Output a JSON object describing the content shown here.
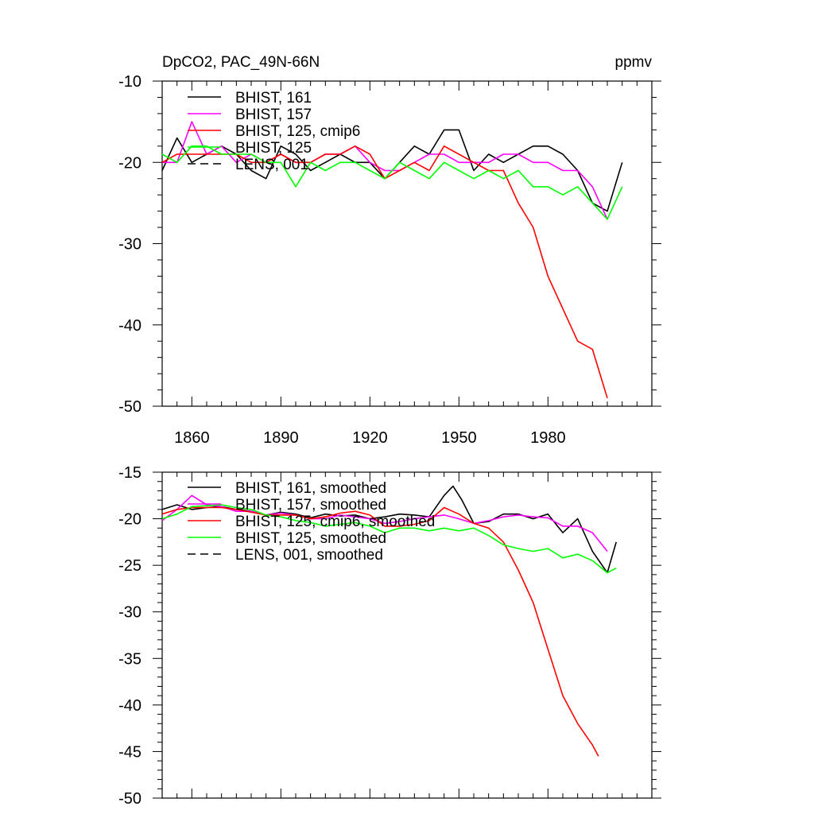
{
  "chart_data": [
    {
      "type": "line",
      "title": "DpCO2, PAC_49N-66N",
      "units": "ppmv",
      "xlim": [
        1850,
        2015
      ],
      "ylim": [
        -50,
        -10
      ],
      "xticks": [
        1860,
        1890,
        1920,
        1950,
        1980
      ],
      "yticks": [
        -50,
        -40,
        -30,
        -20,
        -10
      ],
      "grid": false,
      "legend_position": "top-left",
      "series": [
        {
          "name": "BHIST, 161",
          "color": "#000000",
          "dash": "solid",
          "x": [
            1850,
            1855,
            1860,
            1865,
            1870,
            1875,
            1880,
            1885,
            1890,
            1895,
            1900,
            1905,
            1910,
            1915,
            1920,
            1925,
            1930,
            1935,
            1940,
            1945,
            1950,
            1955,
            1960,
            1965,
            1970,
            1975,
            1980,
            1985,
            1990,
            1995,
            2000,
            2005
          ],
          "y": [
            -21,
            -17,
            -20,
            -19,
            -18,
            -19,
            -21,
            -22,
            -18,
            -19,
            -21,
            -20,
            -19,
            -20,
            -20,
            -22,
            -20,
            -18,
            -19,
            -16,
            -16,
            -21,
            -19,
            -20,
            -19,
            -18,
            -18,
            -19,
            -21,
            -25,
            -26,
            -20
          ]
        },
        {
          "name": "BHIST, 157",
          "color": "#ff00ff",
          "dash": "solid",
          "x": [
            1850,
            1855,
            1860,
            1865,
            1870,
            1875,
            1880,
            1885,
            1890,
            1895,
            1900,
            1905,
            1910,
            1915,
            1920,
            1925,
            1930,
            1935,
            1940,
            1945,
            1950,
            1955,
            1960,
            1965,
            1970,
            1975,
            1980,
            1985,
            1990,
            1995,
            2000
          ],
          "y": [
            -20,
            -20,
            -15,
            -19,
            -18,
            -20,
            -19,
            -20,
            -19,
            -20,
            -20,
            -19,
            -19,
            -18,
            -20,
            -21,
            -21,
            -20,
            -19,
            -19,
            -20,
            -20,
            -20,
            -19,
            -19,
            -20,
            -20,
            -21,
            -21,
            -23,
            -27
          ]
        },
        {
          "name": "BHIST, 125, cmip6",
          "color": "#ff0000",
          "dash": "solid",
          "x": [
            1850,
            1855,
            1860,
            1865,
            1870,
            1875,
            1880,
            1885,
            1890,
            1895,
            1900,
            1905,
            1910,
            1915,
            1920,
            1925,
            1930,
            1935,
            1940,
            1945,
            1950,
            1955,
            1960,
            1965,
            1970,
            1975,
            1980,
            1985,
            1990,
            1995,
            2000
          ],
          "y": [
            -20,
            -19,
            -19,
            -19,
            -19,
            -19,
            -20,
            -20,
            -19,
            -20,
            -20,
            -19,
            -19,
            -18,
            -19,
            -22,
            -21,
            -20,
            -21,
            -18,
            -19,
            -20,
            -21,
            -21,
            -25,
            -28,
            -34,
            -38,
            -42,
            -43,
            -49
          ]
        },
        {
          "name": "BHIST, 125",
          "color": "#00ff00",
          "dash": "solid",
          "x": [
            1850,
            1855,
            1860,
            1865,
            1870,
            1875,
            1880,
            1885,
            1890,
            1895,
            1900,
            1905,
            1910,
            1915,
            1920,
            1925,
            1930,
            1935,
            1940,
            1945,
            1950,
            1955,
            1960,
            1965,
            1970,
            1975,
            1980,
            1985,
            1990,
            1995,
            2000,
            2005
          ],
          "y": [
            -19,
            -20,
            -18,
            -18,
            -19,
            -19,
            -19,
            -20,
            -20,
            -23,
            -20,
            -21,
            -20,
            -20,
            -21,
            -22,
            -20,
            -21,
            -22,
            -20,
            -21,
            -22,
            -21,
            -22,
            -21,
            -23,
            -23,
            -24,
            -23,
            -25,
            -27,
            -23
          ]
        },
        {
          "name": "LENS, 001",
          "color": "#000000",
          "dash": "dashed",
          "x": [],
          "y": []
        }
      ]
    },
    {
      "type": "line",
      "xlim": [
        1850,
        2015
      ],
      "ylim": [
        -50,
        -15
      ],
      "xticks": [
        1860,
        1890,
        1920,
        1950,
        1980
      ],
      "yticks": [
        -50,
        -45,
        -40,
        -35,
        -30,
        -25,
        -20,
        -15
      ],
      "grid": false,
      "legend_position": "top-left",
      "series": [
        {
          "name": "BHIST, 161, smoothed",
          "color": "#000000",
          "dash": "solid",
          "x": [
            1850,
            1855,
            1860,
            1865,
            1870,
            1875,
            1880,
            1885,
            1890,
            1895,
            1900,
            1905,
            1910,
            1915,
            1920,
            1925,
            1930,
            1935,
            1940,
            1945,
            1948,
            1951,
            1955,
            1960,
            1965,
            1970,
            1975,
            1980,
            1985,
            1990,
            1995,
            2000,
            2003
          ],
          "y": [
            -19,
            -18.5,
            -19,
            -18.8,
            -18.7,
            -19,
            -19.2,
            -19.6,
            -19.3,
            -19.5,
            -19.9,
            -19.5,
            -19.7,
            -19.6,
            -20,
            -19.8,
            -19.5,
            -19.6,
            -19.8,
            -17.5,
            -16.5,
            -18,
            -20.5,
            -20.3,
            -19.5,
            -19.5,
            -20,
            -19.5,
            -21.5,
            -20,
            -23.5,
            -25.8,
            -22.5
          ]
        },
        {
          "name": "BHIST, 157, smoothed",
          "color": "#ff00ff",
          "dash": "solid",
          "x": [
            1850,
            1855,
            1860,
            1865,
            1870,
            1875,
            1880,
            1885,
            1890,
            1895,
            1900,
            1905,
            1910,
            1915,
            1920,
            1925,
            1930,
            1935,
            1940,
            1945,
            1950,
            1955,
            1960,
            1965,
            1970,
            1975,
            1980,
            1985,
            1990,
            1995,
            2000
          ],
          "y": [
            -20.2,
            -19,
            -17.5,
            -18.5,
            -18.7,
            -19.2,
            -19.2,
            -19.6,
            -19.4,
            -19.6,
            -20,
            -20,
            -19.6,
            -19.8,
            -20,
            -20.5,
            -20.3,
            -20,
            -19.8,
            -19.6,
            -20,
            -20.5,
            -20.2,
            -19.8,
            -19.6,
            -19.8,
            -19.9,
            -20.8,
            -20.8,
            -21.5,
            -23.5
          ]
        },
        {
          "name": "BHIST, 125, cmip6, smoothed",
          "color": "#ff0000",
          "dash": "solid",
          "x": [
            1850,
            1855,
            1860,
            1865,
            1870,
            1875,
            1880,
            1885,
            1890,
            1895,
            1900,
            1905,
            1910,
            1915,
            1920,
            1925,
            1930,
            1935,
            1940,
            1945,
            1950,
            1955,
            1960,
            1965,
            1970,
            1975,
            1980,
            1985,
            1990,
            1995,
            1997
          ],
          "y": [
            -19.5,
            -19,
            -18.8,
            -18.8,
            -18.8,
            -19,
            -19.3,
            -19.6,
            -19.6,
            -19.6,
            -20,
            -19.8,
            -19.4,
            -19.2,
            -19.6,
            -20.8,
            -20.8,
            -20.6,
            -20.2,
            -18.8,
            -19.5,
            -20.5,
            -21,
            -22.5,
            -25.5,
            -29,
            -34,
            -39,
            -42,
            -44.3,
            -45.5
          ]
        },
        {
          "name": "BHIST, 125, smoothed",
          "color": "#00ff00",
          "dash": "solid",
          "x": [
            1850,
            1855,
            1860,
            1865,
            1870,
            1875,
            1880,
            1885,
            1890,
            1895,
            1900,
            1905,
            1910,
            1915,
            1920,
            1925,
            1930,
            1935,
            1940,
            1945,
            1950,
            1955,
            1960,
            1965,
            1970,
            1975,
            1980,
            1985,
            1990,
            1995,
            2000,
            2003
          ],
          "y": [
            -20,
            -19.5,
            -18.7,
            -18.6,
            -18.5,
            -18.8,
            -19,
            -19.6,
            -19.8,
            -20.2,
            -20.4,
            -20.8,
            -20.6,
            -20.4,
            -20.8,
            -21.5,
            -21,
            -21,
            -21.3,
            -21,
            -21.3,
            -21,
            -21.8,
            -22.8,
            -23.2,
            -23.5,
            -23.2,
            -24.2,
            -23.8,
            -24.5,
            -25.8,
            -25.3
          ]
        },
        {
          "name": "LENS, 001, smoothed",
          "color": "#000000",
          "dash": "dashed",
          "x": [],
          "y": []
        }
      ]
    }
  ]
}
